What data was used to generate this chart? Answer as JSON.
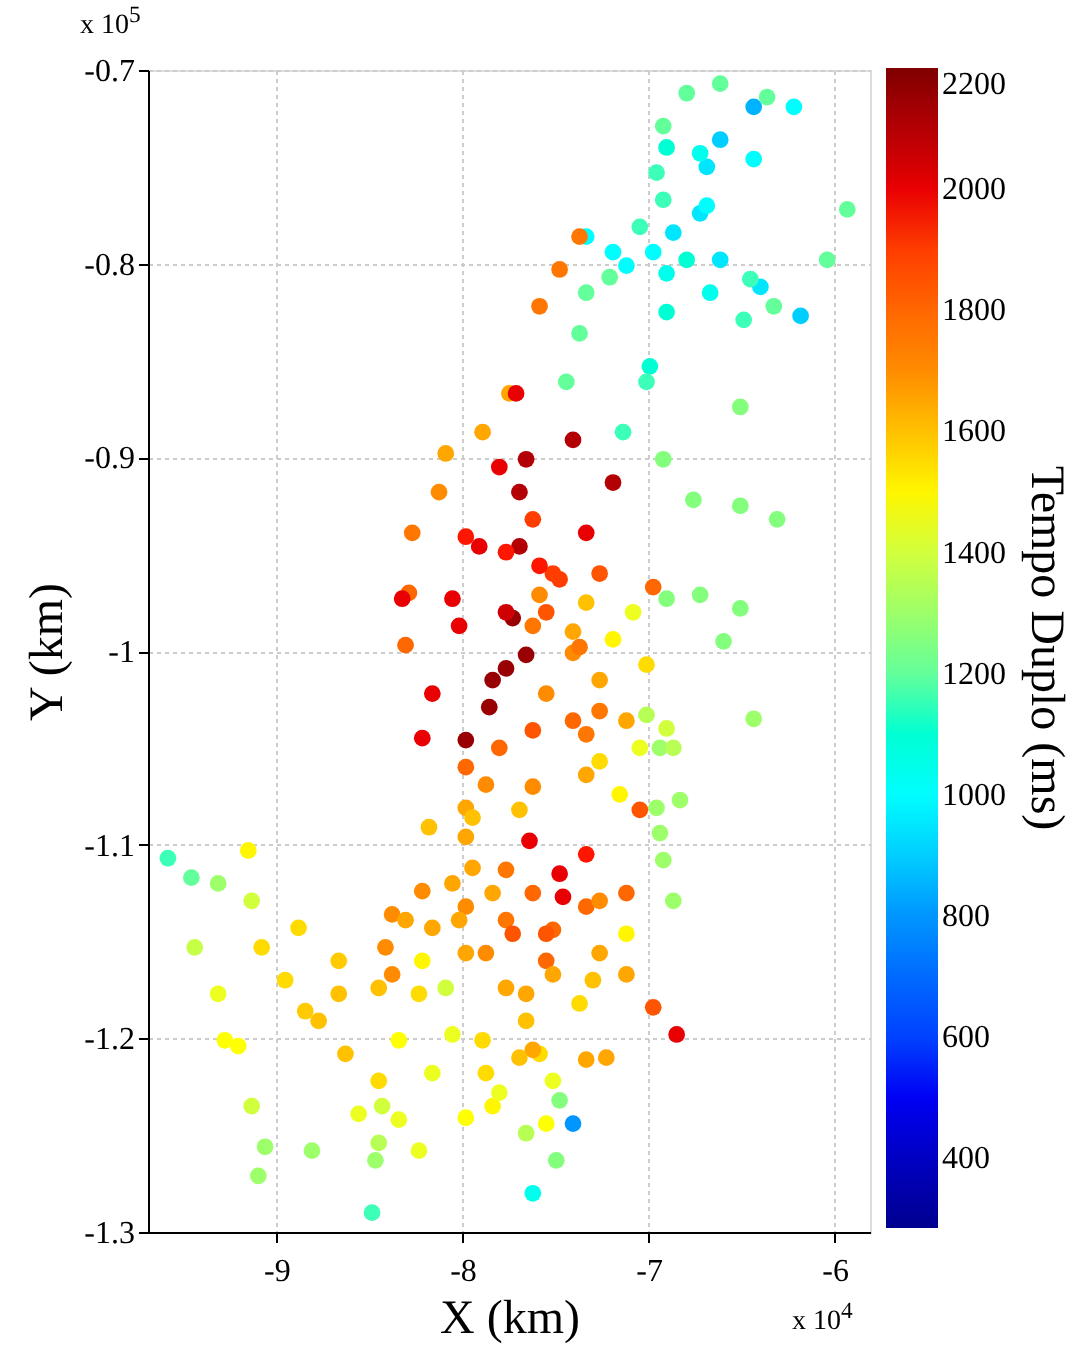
{
  "chart_data": {
    "type": "scatter",
    "xlabel": "X (km)",
    "ylabel": "Y (km)",
    "clabel": "Tempo Duplo (ms)",
    "annotations": [
      "x 10$^{5}$",
      "x 10$^{4}$"
    ],
    "xlim": [
      -9.69,
      -5.81
    ],
    "xticks": [
      -9,
      -8,
      -7,
      -6
    ],
    "ylim": [
      -1.3,
      -0.7
    ],
    "yticks": [
      -1.3,
      -1.2,
      -1.1,
      -1,
      -0.9,
      -0.8,
      -0.7
    ],
    "clim": [
      285,
      2200
    ],
    "cticks": [
      400,
      600,
      800,
      1000,
      1200,
      1400,
      1600,
      1800,
      2000,
      2200
    ],
    "grid": true,
    "marker": "circle",
    "x": [
      -6.921,
      -6.795,
      -6.615,
      -6.363,
      -6.435,
      -6.615,
      -6.687,
      -6.723,
      -6.219,
      -6.435,
      -6.687,
      -6.975,
      -7.119,
      -6.903,
      -6.723,
      -6.957,
      -6.921,
      -7.047,
      -7.335,
      -7.191,
      -6.867,
      -6.615,
      -6.399,
      -6.183,
      -6.903,
      -6.669,
      -7.371,
      -7.478,
      -7.586,
      -7.209,
      -7.335,
      -7.371,
      -7.442,
      -6.795,
      -6.903,
      -6.993,
      -7.011,
      -7.137,
      -5.932,
      -6.04,
      -6.327,
      -6.453,
      -6.489,
      -6.507,
      -6.507,
      -6.507,
      -6.921,
      -6.759,
      -6.309,
      -6.903,
      -6.723,
      -6.597,
      -7.748,
      -7.892,
      -8.09,
      -8.126,
      -8.27,
      -8.288,
      -8.306,
      -7.712,
      -7.802,
      -7.91,
      -8.018,
      -7.406,
      -7.658,
      -7.694,
      -7.694,
      -7.73,
      -7.191,
      -7.335,
      -7.478,
      -7.55,
      -7.982,
      -7.766,
      -7.514,
      -7.622,
      -7.263,
      -6.975,
      -8.324,
      -8.054,
      -7.766,
      -7.586,
      -7.335,
      -7.083,
      -7.622,
      -7.406,
      -7.191,
      -7.586,
      -7.406,
      -7.658,
      -7.838,
      -7.982,
      -7.766,
      -7.856,
      -8.162,
      -8.216,
      -7.371,
      -7.55,
      -7.011,
      -7.263,
      -7.982,
      -7.802,
      -7.622,
      -7.406,
      -7.263,
      -7.874,
      -7.622,
      -7.335,
      -7.335,
      -7.119,
      -7.263,
      -7.155,
      -7.047,
      -6.903,
      -7.011,
      -6.939,
      -6.957,
      -6.831,
      -6.867,
      -7.982,
      -8.18,
      -7.946,
      -7.694,
      -6.939,
      -6.921,
      -6.867,
      -6.435,
      -7.64,
      -7.478,
      -7.46,
      -7.335,
      -7.047,
      -7.982,
      -7.946,
      -7.838,
      -8.216,
      -7.982,
      -7.766,
      -7.514,
      -7.73,
      -7.55,
      -7.335,
      -7.119,
      -7.766,
      -7.622,
      -7.55,
      -8.054,
      -8.018,
      -7.982,
      -8.162,
      -7.263,
      -7.263,
      -7.299,
      -7.371,
      -7.514,
      -7.658,
      -7.119,
      -7.119,
      -6.975,
      -6.849,
      -7.874,
      -7.766,
      -7.658,
      -7.586,
      -7.514,
      -7.478,
      -7.406,
      -8.378,
      -8.414,
      -8.378,
      -8.306,
      -8.216,
      -7.335,
      -7.622,
      -7.227,
      -7.892,
      -7.874,
      -7.838,
      -7.694,
      -7.802,
      -7.658,
      -7.622,
      -7.55,
      -7.496,
      -9.583,
      -9.457,
      -9.313,
      -9.133,
      -8.881,
      -8.665,
      -8.45,
      -8.234,
      -8.09,
      -9.439,
      -9.313,
      -9.277,
      -9.133,
      -9.097,
      -9.151,
      -9.079,
      -8.953,
      -8.773,
      -8.629,
      -8.45,
      -8.342,
      -8.234,
      -9.205,
      -8.845,
      -8.665,
      -9.061,
      -8.809,
      -8.45,
      -7.982,
      -8.342,
      -8.432,
      -8.468,
      -8.486,
      -8.054,
      -8.162,
      -8.558
    ],
    "values": [
      -0.729,
      -0.712,
      -0.707,
      -0.714,
      -0.719,
      -0.736,
      -0.75,
      -0.774,
      -0.719,
      -0.746,
      -0.77,
      -0.794,
      -0.801,
      -0.74,
      -0.743,
      -0.753,
      -0.767,
      -0.781,
      -0.786,
      -0.794,
      -0.784,
      -0.798,
      -0.812,
      -0.827,
      -0.805,
      -0.815,
      -0.786,
      -0.803,
      -0.822,
      -0.807,
      -0.815,
      -0.836,
      -0.861,
      -0.798,
      -0.825,
      -0.853,
      -0.861,
      -0.887,
      -0.772,
      -0.798,
      -0.822,
      -0.808,
      -0.829,
      -0.874,
      -0.925,
      -0.978,
      -0.901,
      -0.922,
      -0.932,
      -0.973,
      -0.971,
      -0.995,
      -0.867,
      -0.887,
      -0.898,
      -0.918,
      -0.939,
      -0.97,
      -0.997,
      -0.867,
      -0.905,
      -0.946,
      -0.987,
      -0.891,
      -0.901,
      -0.918,
      -0.946,
      -0.983,
      -0.913,
      -0.939,
      -0.963,
      -0.98,
      -0.941,
      -0.949,
      -0.96,
      -0.932,
      -0.96,
      -0.967,
      -0.973,
      -0.973,
      -0.98,
      -0.971,
      -0.975,
      -0.98,
      -0.987,
      -0.99,
      -0.994,
      -0.956,
      -1.001,
      -1.002,
      -1.015,
      -1.046,
      -1.009,
      -1.029,
      -1.022,
      -1.045,
      -0.998,
      -1.022,
      -1.007,
      -1.015,
      -1.06,
      -1.05,
      -1.041,
      -1.036,
      -1.031,
      -1.069,
      -1.07,
      -1.064,
      -1.043,
      -1.036,
      -1.057,
      -1.074,
      -1.05,
      -1.04,
      -1.033,
      -1.05,
      -1.081,
      -1.077,
      -1.05,
      -1.081,
      -1.091,
      -1.086,
      -1.082,
      -1.094,
      -1.108,
      -1.129,
      -1.035,
      -1.098,
      -1.115,
      -1.127,
      -1.105,
      -1.082,
      -1.096,
      -1.112,
      -1.125,
      -1.124,
      -1.132,
      -1.139,
      -1.144,
      -1.146,
      -1.146,
      -1.132,
      -1.125,
      -1.113,
      -1.125,
      -1.16,
      -1.12,
      -1.139,
      -1.156,
      -1.143,
      -1.129,
      -1.156,
      -1.17,
      -1.182,
      -1.167,
      -1.177,
      -1.146,
      -1.167,
      -1.184,
      -1.198,
      -1.156,
      -1.174,
      -1.191,
      -1.208,
      -1.222,
      -1.232,
      -1.244,
      -1.136,
      -1.153,
      -1.167,
      -1.139,
      -1.16,
      -1.211,
      -1.206,
      -1.21,
      -1.201,
      -1.218,
      -1.235,
      -1.21,
      -1.228,
      -1.249,
      -1.28,
      -1.244,
      -1.263,
      -1.107,
      -1.117,
      -1.12,
      -1.129,
      -1.143,
      -1.16,
      -1.174,
      -1.177,
      -1.174,
      -1.153,
      -1.177,
      -1.201,
      -1.235,
      -1.271,
      -1.103,
      -1.153,
      -1.17,
      -1.191,
      -1.208,
      -1.222,
      -1.242,
      -1.258,
      -1.204,
      -1.186,
      -1.177,
      -1.256,
      -1.258,
      -1.254,
      -1.241,
      -1.201,
      -1.235,
      -1.263,
      -1.29,
      -1.198,
      -1.218,
      -1.239
    ],
    "cvalues": [
      1200,
      1200,
      1200,
      1200,
      850,
      900,
      950,
      950,
      1000,
      1000,
      1000,
      1000,
      1000,
      1100,
      1050,
      1150,
      1150,
      1150,
      1000,
      1000,
      950,
      950,
      950,
      900,
      1050,
      1050,
      1750,
      1750,
      1750,
      1200,
      1200,
      1200,
      1200,
      1100,
      1100,
      1100,
      1150,
      1150,
      1200,
      1200,
      1200,
      1150,
      1150,
      1250,
      1250,
      1250,
      1250,
      1250,
      1250,
      1250,
      1250,
      1250,
      1650,
      1650,
      1650,
      1700,
      1750,
      1800,
      1800,
      2000,
      2000,
      2000,
      2000,
      2100,
      2100,
      2100,
      2100,
      2150,
      2100,
      2000,
      1900,
      1850,
      1950,
      1950,
      1900,
      1900,
      1850,
      1800,
      2000,
      2000,
      2050,
      1700,
      1600,
      1450,
      1750,
      1650,
      1500,
      1950,
      1700,
      2150,
      2150,
      2150,
      2150,
      2150,
      2000,
      2000,
      1750,
      1700,
      1550,
      1650,
      1800,
      1800,
      1850,
      1800,
      1750,
      1700,
      1700,
      1650,
      1750,
      1650,
      1550,
      1500,
      1450,
      1400,
      1350,
      1300,
      1300,
      1300,
      1350,
      1650,
      1600,
      1600,
      1600,
      1300,
      1300,
      1300,
      1300,
      2000,
      2000,
      2000,
      1950,
      1850,
      1650,
      1650,
      1650,
      1700,
      1700,
      1750,
      1800,
      1850,
      1850,
      1800,
      1800,
      1750,
      1800,
      1800,
      1650,
      1650,
      1650,
      1650,
      1700,
      1650,
      1600,
      1550,
      1650,
      1650,
      1500,
      1650,
      1850,
      2000,
      1700,
      1650,
      1600,
      1550,
      1450,
      1250,
      800,
      1700,
      1700,
      1700,
      1650,
      1500,
      1650,
      1650,
      1650,
      1550,
      1550,
      1500,
      1600,
      1450,
      1350,
      1050,
      1480,
      1250,
      1150,
      1200,
      1300,
      1400,
      1550,
      1580,
      1600,
      1550,
      1400,
      1380,
      1450,
      1480,
      1400,
      1300,
      1500,
      1550,
      1550,
      1600,
      1600,
      1550,
      1450,
      1450,
      1480,
      1580,
      1600,
      1300,
      1300,
      1350,
      1480,
      1480,
      1400,
      1300,
      1150,
      1450,
      1450,
      1450
    ]
  }
}
